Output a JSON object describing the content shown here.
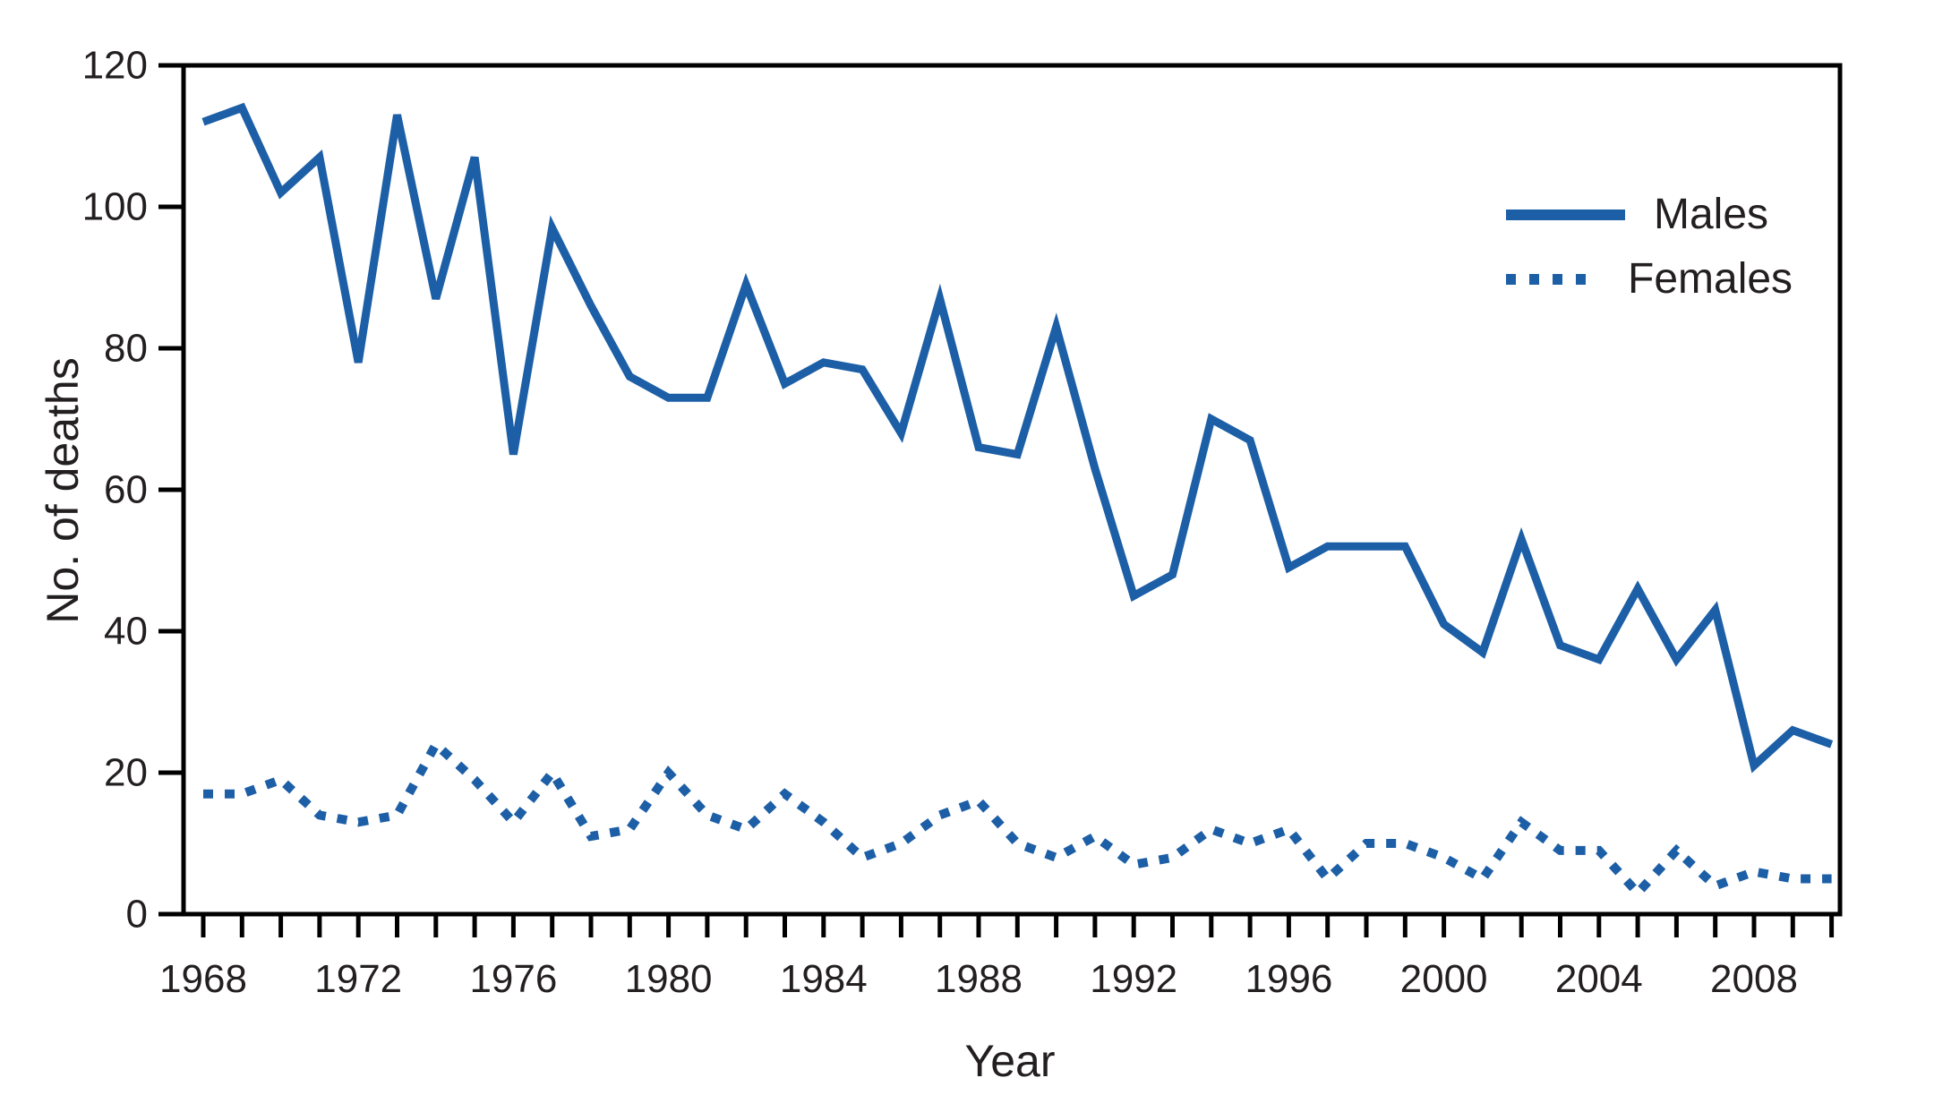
{
  "figure": {
    "background": "#ffffff",
    "line_blue": "#1d5fa6",
    "text_color": "#231f20",
    "axis_color": "#000000"
  },
  "chart_data": {
    "type": "line",
    "title": "",
    "xlabel": "Year",
    "ylabel": "No. of deaths",
    "ylim": [
      0,
      120
    ],
    "grid": false,
    "legend_position": "upper right",
    "y_ticks": [
      0,
      20,
      40,
      60,
      80,
      100,
      120
    ],
    "x_labeled_ticks": [
      1968,
      1972,
      1976,
      1980,
      1984,
      1988,
      1992,
      1996,
      2000,
      2004,
      2008
    ],
    "x_tick_every": 1,
    "x": [
      1968,
      1969,
      1970,
      1971,
      1972,
      1973,
      1974,
      1975,
      1976,
      1977,
      1978,
      1979,
      1980,
      1981,
      1982,
      1983,
      1984,
      1985,
      1986,
      1987,
      1988,
      1989,
      1990,
      1991,
      1992,
      1993,
      1994,
      1995,
      1996,
      1997,
      1998,
      1999,
      2000,
      2001,
      2002,
      2003,
      2004,
      2005,
      2006,
      2007,
      2008,
      2009,
      2010
    ],
    "series": [
      {
        "name": "Males",
        "style": "solid",
        "values": [
          112,
          114,
          102,
          107,
          78,
          113,
          87,
          107,
          65,
          97,
          86,
          76,
          73,
          73,
          89,
          75,
          78,
          77,
          68,
          87,
          66,
          65,
          83,
          63,
          45,
          48,
          70,
          67,
          49,
          52,
          52,
          52,
          41,
          37,
          53,
          38,
          36,
          46,
          36,
          43,
          21,
          26,
          24
        ]
      },
      {
        "name": "Females",
        "style": "dotted",
        "values": [
          17,
          17,
          19,
          14,
          13,
          14,
          24,
          19,
          13,
          20,
          11,
          12,
          20,
          14,
          12,
          17,
          13,
          8,
          10,
          14,
          16,
          10,
          8,
          11,
          7,
          8,
          12,
          10,
          12,
          5,
          10,
          10,
          8,
          5,
          13,
          9,
          9,
          3,
          9,
          4,
          6,
          5,
          5
        ]
      }
    ]
  }
}
